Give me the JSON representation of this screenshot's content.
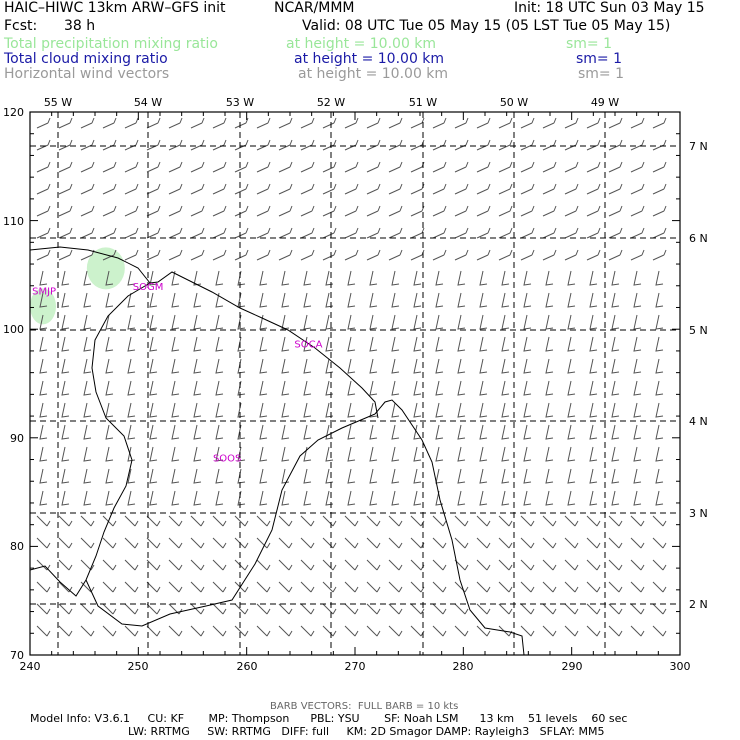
{
  "header": {
    "model_title": "HAIC–HIWC 13km ARW–GFS init",
    "org": "NCAR/MMM",
    "init": "Init: 18 UTC Sun 03 May 15",
    "fcst_label": "Fcst:",
    "fcst_value": "38 h",
    "valid": "Valid: 08 UTC Tue 05 May 15 (05 LST Tue 05 May 15)"
  },
  "fields": [
    {
      "name": "Total precipitation mixing ratio",
      "height": "at height = 10.00 km",
      "sm": "sm= 1",
      "color": "#99e699"
    },
    {
      "name": "Total cloud mixing ratio",
      "height": "at height = 10.00 km",
      "sm": "sm= 1",
      "color": "#1a1aa6"
    },
    {
      "name": "Horizontal wind vectors",
      "height": "at height = 10.00 km",
      "sm": "sm= 1",
      "color": "#9a9a9a"
    }
  ],
  "map": {
    "x_ticks": [
      "240",
      "250",
      "260",
      "270",
      "280",
      "290",
      "300"
    ],
    "y_ticks": [
      "70",
      "80",
      "90",
      "100",
      "110",
      "120"
    ],
    "lon_labels": [
      "55 W",
      "54 W",
      "53 W",
      "52 W",
      "51 W",
      "50 W",
      "49 W"
    ],
    "lat_labels": [
      "7 N",
      "6 N",
      "5 N",
      "4 N",
      "3 N",
      "2 N"
    ],
    "stations": [
      {
        "label": "SMJP",
        "x": 241.3,
        "y": 103.2
      },
      {
        "label": "SOGM",
        "x": 250.9,
        "y": 103.6
      },
      {
        "label": "SOCA",
        "x": 265.7,
        "y": 98.3
      },
      {
        "label": "SOOS",
        "x": 258.2,
        "y": 87.8
      }
    ],
    "station_color": "#cc00cc",
    "precip_color": "#ccf2cc",
    "wind_color": "#555555"
  },
  "footer": {
    "barb_note": "BARB VECTORS:  FULL BARB = 10 kts",
    "line1": "Model Info: V3.6.1     CU: KF       MP: Thompson      PBL: YSU       SF: Noah LSM      13 km    51 levels    60 sec",
    "line2": "LW: RRTMG     SW: RRTMG   DIFF: full     KM: 2D Smagor DAMP: Rayleigh3   SFLAY: MM5"
  }
}
